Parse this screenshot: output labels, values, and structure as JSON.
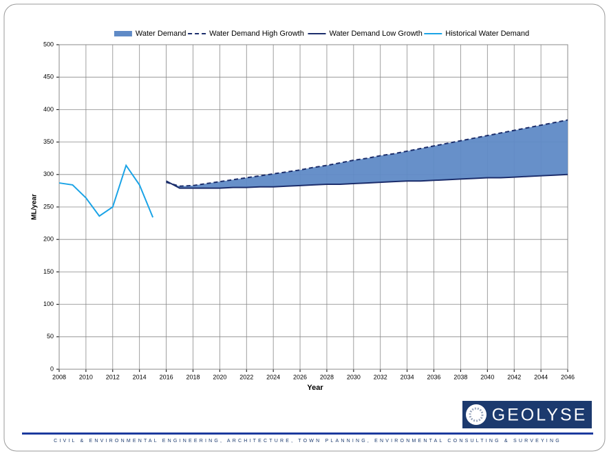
{
  "chart_data": {
    "type": "line",
    "x_label": "Year",
    "y_label": "ML/year",
    "x": [
      2008,
      2009,
      2010,
      2011,
      2012,
      2013,
      2014,
      2015,
      2016,
      2017,
      2018,
      2019,
      2020,
      2021,
      2022,
      2023,
      2024,
      2025,
      2026,
      2027,
      2028,
      2029,
      2030,
      2031,
      2032,
      2033,
      2034,
      2035,
      2036,
      2037,
      2038,
      2039,
      2040,
      2041,
      2042,
      2043,
      2044,
      2045,
      2046
    ],
    "series": [
      {
        "name": "Water Demand",
        "color": "#5f8ac6",
        "style": "band"
      },
      {
        "name": "Water Demand High Growth",
        "color": "#1b2d6b",
        "style": "dashed",
        "values": [
          null,
          null,
          null,
          null,
          null,
          null,
          null,
          null,
          288,
          282,
          283,
          286,
          289,
          292,
          295,
          298,
          301,
          304,
          307,
          311,
          314,
          318,
          322,
          325,
          329,
          332,
          336,
          340,
          344,
          348,
          352,
          356,
          360,
          364,
          368,
          372,
          376,
          380,
          384
        ]
      },
      {
        "name": "Water Demand Low Growth",
        "color": "#1b2d6b",
        "style": "solid",
        "values": [
          null,
          null,
          null,
          null,
          null,
          null,
          null,
          null,
          290,
          279,
          279,
          279,
          279,
          280,
          280,
          281,
          281,
          282,
          283,
          284,
          285,
          285,
          286,
          287,
          288,
          289,
          290,
          290,
          291,
          292,
          293,
          294,
          295,
          295,
          296,
          297,
          298,
          299,
          300
        ]
      },
      {
        "name": "Historical Water Demand",
        "color": "#1aa3e6",
        "style": "solid",
        "values": [
          287,
          284,
          264,
          236,
          250,
          314,
          284,
          234,
          null,
          null,
          null,
          null,
          null,
          null,
          null,
          null,
          null,
          null,
          null,
          null,
          null,
          null,
          null,
          null,
          null,
          null,
          null,
          null,
          null,
          null,
          null,
          null,
          null,
          null,
          null,
          null,
          null,
          null,
          null
        ]
      }
    ],
    "xlim": [
      2008,
      2046
    ],
    "ylim": [
      0,
      500
    ],
    "xticks": [
      2008,
      2010,
      2012,
      2014,
      2016,
      2018,
      2020,
      2022,
      2024,
      2026,
      2028,
      2030,
      2032,
      2034,
      2036,
      2038,
      2040,
      2042,
      2044,
      2046
    ],
    "yticks": [
      0,
      50,
      100,
      150,
      200,
      250,
      300,
      350,
      400,
      450,
      500
    ],
    "grid": true,
    "legend": "top"
  },
  "footer": {
    "logo": "GEOLYSE",
    "tagline": "CIVIL & ENVIRONMENTAL ENGINEERING, ARCHITECTURE, TOWN PLANNING, ENVIRONMENTAL CONSULTING & SURVEYING"
  }
}
